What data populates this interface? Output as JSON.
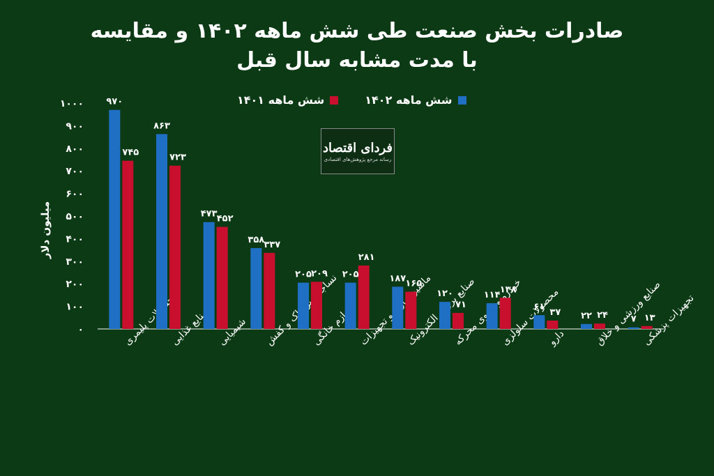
{
  "title_line1": "صادرات بخش صنعت طی شش ماهه ۱۴۰۲ و مقایسه",
  "title_line2": "با مدت مشابه سال قبل",
  "logo": {
    "main": "فردای اقتصاد",
    "sub": "رسانه مرجع پژوهش‌های اقتصادی"
  },
  "colors": {
    "background": "#0b3a14",
    "series_1402": "#1f6fc4",
    "series_1401": "#c8102e"
  },
  "chart_data": {
    "type": "bar",
    "title": "صادرات بخش صنعت طی شش ماهه ۱۴۰۲ و مقایسه با مدت مشابه سال قبل",
    "ylabel": "میلیون دلار",
    "xlabel": "",
    "ylim": [
      0,
      1000
    ],
    "yticks": [
      0,
      100,
      200,
      300,
      400,
      500,
      600,
      700,
      800,
      900,
      1000
    ],
    "ytick_labels": [
      "۰",
      "۱۰۰",
      "۲۰۰",
      "۳۰۰",
      "۴۰۰",
      "۵۰۰",
      "۶۰۰",
      "۷۰۰",
      "۸۰۰",
      "۹۰۰",
      "۱۰۰۰"
    ],
    "grid": false,
    "legend_position": "top-center",
    "categories": [
      "محصولات پلیمری",
      "صنایع غذایی",
      "شیمیایی",
      "نساجی، پوشاک و کفش",
      "لوازم خانگی",
      "ماشین‌سازی و تجهیزات",
      "صنایع برق و الکترونیک",
      "خودرو و نیروی محرکه",
      "محصولات سلولزی",
      "دارو",
      "صنایع ورزشی و خلاق",
      "تجهیزات پزشکی"
    ],
    "series": [
      {
        "name": "شش ماهه ۱۴۰۲",
        "color": "#1f6fc4",
        "values": [
          970,
          863,
          473,
          358,
          205,
          205,
          187,
          120,
          114,
          61,
          22,
          7
        ],
        "labels": [
          "۹۷۰",
          "۸۶۳",
          "۴۷۳",
          "۳۵۸",
          "۲۰۵",
          "۲۰۵",
          "۱۸۷",
          "۱۲۰",
          "۱۱۴",
          "۶۱",
          "۲۲",
          "۷"
        ]
      },
      {
        "name": "شش ماهه  ۱۴۰۱",
        "color": "#c8102e",
        "values": [
          745,
          723,
          452,
          337,
          209,
          281,
          165,
          71,
          138,
          37,
          24,
          13
        ],
        "labels": [
          "۷۴۵",
          "۷۲۳",
          "۴۵۲",
          "۳۳۷",
          "۲۰۹",
          "۲۸۱",
          "۱۶۵",
          "۷۱",
          "۱۳۸",
          "۳۷",
          "۲۴",
          "۱۳"
        ]
      }
    ]
  }
}
